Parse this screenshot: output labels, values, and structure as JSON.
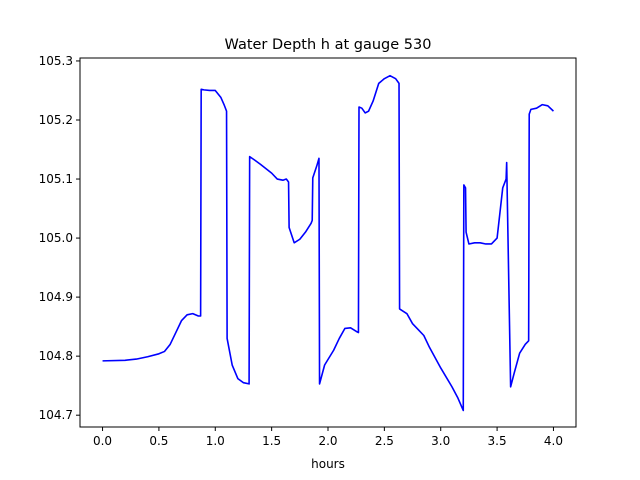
{
  "chart_data": {
    "type": "line",
    "title": "Water Depth h at gauge 530",
    "xlabel": "hours",
    "ylabel": "",
    "xlim": [
      -0.2,
      4.2
    ],
    "ylim": [
      104.68,
      105.305
    ],
    "xticks": [
      0.0,
      0.5,
      1.0,
      1.5,
      2.0,
      2.5,
      3.0,
      3.5,
      4.0
    ],
    "xtick_labels": [
      "0.0",
      "0.5",
      "1.0",
      "1.5",
      "2.0",
      "2.5",
      "3.0",
      "3.5",
      "4.0"
    ],
    "yticks": [
      104.7,
      104.8,
      104.9,
      105.0,
      105.1,
      105.2,
      105.3
    ],
    "ytick_labels": [
      "104.7",
      "104.8",
      "104.9",
      "105.0",
      "105.1",
      "105.2",
      "105.3"
    ],
    "grid": false,
    "series": [
      {
        "color": "#0000ff",
        "x": [
          0.0,
          0.2,
          0.3,
          0.4,
          0.5,
          0.55,
          0.6,
          0.65,
          0.7,
          0.75,
          0.8,
          0.85,
          0.87,
          0.875,
          0.9,
          0.95,
          1.0,
          1.05,
          1.08,
          1.1,
          1.105,
          1.15,
          1.2,
          1.25,
          1.3,
          1.305,
          1.35,
          1.4,
          1.5,
          1.55,
          1.6,
          1.63,
          1.65,
          1.655,
          1.7,
          1.75,
          1.8,
          1.85,
          1.86,
          1.865,
          1.9,
          1.92,
          1.925,
          1.97,
          2.05,
          2.1,
          2.15,
          2.2,
          2.25,
          2.27,
          2.275,
          2.3,
          2.33,
          2.36,
          2.4,
          2.45,
          2.5,
          2.55,
          2.6,
          2.63,
          2.635,
          2.7,
          2.75,
          2.8,
          2.85,
          2.9,
          3.0,
          3.1,
          3.15,
          3.2,
          3.205,
          3.22,
          3.225,
          3.25,
          3.3,
          3.35,
          3.4,
          3.45,
          3.5,
          3.55,
          3.58,
          3.585,
          3.62,
          3.65,
          3.7,
          3.75,
          3.78,
          3.785,
          3.8,
          3.85,
          3.9,
          3.95,
          4.0
        ],
        "y": [
          104.792,
          104.793,
          104.795,
          104.799,
          104.804,
          104.808,
          104.82,
          104.84,
          104.86,
          104.87,
          104.872,
          104.868,
          104.868,
          105.252,
          105.251,
          105.25,
          105.25,
          105.238,
          105.225,
          105.215,
          104.83,
          104.785,
          104.762,
          104.755,
          104.753,
          105.138,
          105.132,
          105.125,
          105.11,
          105.1,
          105.098,
          105.1,
          105.095,
          105.018,
          104.992,
          104.998,
          105.01,
          105.025,
          105.03,
          105.102,
          105.122,
          105.135,
          104.753,
          104.785,
          104.81,
          104.83,
          104.847,
          104.848,
          104.842,
          104.84,
          105.222,
          105.22,
          105.212,
          105.215,
          105.232,
          105.262,
          105.27,
          105.275,
          105.27,
          105.262,
          104.88,
          104.872,
          104.855,
          104.845,
          104.835,
          104.815,
          104.78,
          104.748,
          104.73,
          104.708,
          105.09,
          105.085,
          105.01,
          104.99,
          104.992,
          104.992,
          104.99,
          104.99,
          105.0,
          105.085,
          105.1,
          105.128,
          104.748,
          104.77,
          104.805,
          104.82,
          104.826,
          105.21,
          105.218,
          105.22,
          105.226,
          105.224,
          105.215
        ]
      }
    ]
  }
}
